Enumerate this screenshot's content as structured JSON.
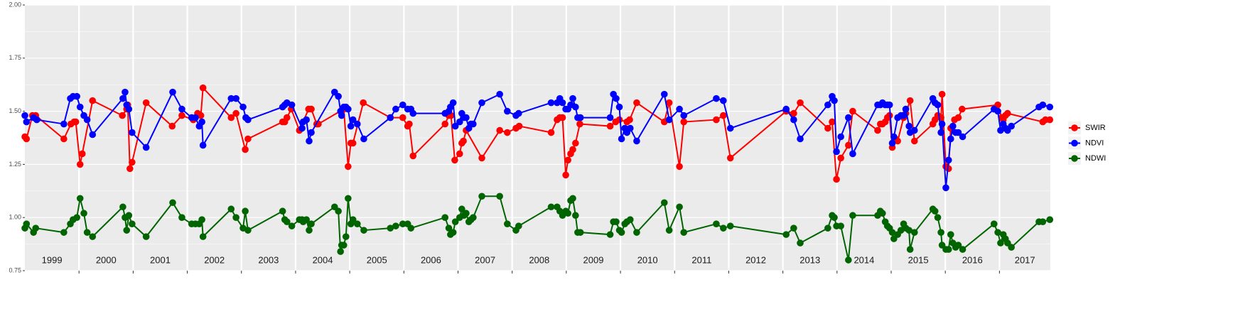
{
  "chart_data": {
    "type": "line",
    "legend": "right",
    "grid": true,
    "xlim": [
      1999,
      2017.94
    ],
    "ylim": [
      0.75,
      2
    ],
    "yticks": [
      {
        "value": 0.75,
        "label": "0.75"
      },
      {
        "value": 1,
        "label": "1.00"
      },
      {
        "value": 1.25,
        "label": "1.25"
      },
      {
        "value": 1.5,
        "label": "1.50"
      },
      {
        "value": 1.75,
        "label": "1.75"
      },
      {
        "value": 2,
        "label": "2.00"
      }
    ],
    "xticks": [
      1999,
      2000,
      2001,
      2002,
      2003,
      2004,
      2005,
      2006,
      2007,
      2008,
      2009,
      2010,
      2011,
      2012,
      2013,
      2014,
      2015,
      2016,
      2017
    ],
    "series": [
      {
        "name": "SWIR",
        "color": "#ff0000",
        "x": [
          1999.0,
          1999.03,
          1999.14,
          1999.2,
          1999.72,
          1999.85,
          1999.91,
          1999.94,
          2000.02,
          2000.06,
          2000.25,
          2000.8,
          2000.88,
          2000.9,
          2000.94,
          2000.98,
          2001.24,
          2001.72,
          2001.9,
          2002.11,
          2002.19,
          2002.25,
          2002.29,
          2002.81,
          2002.9,
          2003.07,
          2003.12,
          2003.76,
          2003.8,
          2003.84,
          2003.92,
          2004.07,
          2004.24,
          2004.29,
          2004.39,
          2004.42,
          2004.89,
          2004.97,
          2005.02,
          2005.06,
          2005.25,
          2005.75,
          2005.98,
          2006.07,
          2006.1,
          2006.17,
          2006.76,
          2006.83,
          2006.87,
          2006.94,
          2007.03,
          2007.07,
          2007.1,
          2007.15,
          2007.44,
          2007.77,
          2007.91,
          2008.07,
          2008.13,
          2008.72,
          2008.83,
          2008.88,
          2008.93,
          2008.99,
          2009.03,
          2009.08,
          2009.12,
          2009.17,
          2009.25,
          2009.81,
          2009.91,
          2009.98,
          2010.12,
          2010.17,
          2010.3,
          2010.81,
          2010.9,
          2011.09,
          2011.17,
          2011.77,
          2011.9,
          2012.03,
          2013.06,
          2013.2,
          2013.32,
          2013.83,
          2013.91,
          2013.99,
          2014.07,
          2014.21,
          2014.29,
          2014.75,
          2014.8,
          2014.84,
          2014.89,
          2014.93,
          2014.97,
          2015.02,
          2015.08,
          2015.12,
          2015.23,
          2015.27,
          2015.35,
          2015.43,
          2015.77,
          2015.81,
          2015.86,
          2015.92,
          2015.94,
          2016.01,
          2016.06,
          2016.1,
          2016.17,
          2016.24,
          2016.31,
          2016.97,
          2017.04,
          2017.07,
          2017.11,
          2017.15,
          2017.8,
          2017.85,
          2017.93
        ],
        "values": [
          1.38,
          1.37,
          1.48,
          1.48,
          1.37,
          1.44,
          1.45,
          1.45,
          1.25,
          1.3,
          1.55,
          1.48,
          1.51,
          1.53,
          1.23,
          1.26,
          1.54,
          1.43,
          1.48,
          1.46,
          1.49,
          1.48,
          1.61,
          1.47,
          1.49,
          1.32,
          1.37,
          1.45,
          1.45,
          1.47,
          1.51,
          1.41,
          1.51,
          1.51,
          1.44,
          1.44,
          1.51,
          1.24,
          1.35,
          1.35,
          1.54,
          1.47,
          1.47,
          1.43,
          1.44,
          1.29,
          1.44,
          1.48,
          1.48,
          1.27,
          1.3,
          1.35,
          1.36,
          1.41,
          1.28,
          1.41,
          1.4,
          1.42,
          1.43,
          1.4,
          1.46,
          1.47,
          1.47,
          1.2,
          1.27,
          1.3,
          1.32,
          1.35,
          1.44,
          1.43,
          1.45,
          1.46,
          1.45,
          1.46,
          1.54,
          1.45,
          1.54,
          1.24,
          1.45,
          1.46,
          1.48,
          1.28,
          1.5,
          1.49,
          1.54,
          1.42,
          1.45,
          1.18,
          1.28,
          1.34,
          1.5,
          1.41,
          1.44,
          1.44,
          1.45,
          1.47,
          1.48,
          1.33,
          1.37,
          1.36,
          1.47,
          1.49,
          1.55,
          1.36,
          1.44,
          1.46,
          1.48,
          1.47,
          1.58,
          1.24,
          1.23,
          1.42,
          1.46,
          1.47,
          1.51,
          1.53,
          1.47,
          1.46,
          1.48,
          1.49,
          1.45,
          1.46,
          1.46
        ]
      },
      {
        "name": "NDVI",
        "color": "#0000ff",
        "x": [
          1999.0,
          1999.03,
          1999.16,
          1999.22,
          1999.72,
          1999.84,
          1999.89,
          1999.96,
          2000.02,
          2000.09,
          2000.15,
          2000.25,
          2000.81,
          2000.85,
          2000.88,
          2000.92,
          2000.98,
          2001.24,
          2001.73,
          2001.9,
          2002.08,
          2002.15,
          2002.22,
          2002.27,
          2002.29,
          2002.81,
          2002.9,
          2003.03,
          2003.08,
          2003.12,
          2003.76,
          2003.8,
          2003.84,
          2003.93,
          2004.12,
          2004.14,
          2004.2,
          2004.25,
          2004.29,
          2004.72,
          2004.79,
          2004.83,
          2004.85,
          2004.89,
          2004.93,
          2004.97,
          2005.02,
          2005.06,
          2005.14,
          2005.26,
          2005.75,
          2005.85,
          2005.98,
          2006.07,
          2006.13,
          2006.17,
          2006.76,
          2006.83,
          2006.86,
          2006.91,
          2006.95,
          2007.03,
          2007.07,
          2007.11,
          2007.15,
          2007.2,
          2007.24,
          2007.28,
          2007.44,
          2007.77,
          2007.91,
          2008.07,
          2008.12,
          2008.72,
          2008.83,
          2008.88,
          2008.93,
          2008.99,
          2009.03,
          2009.08,
          2009.12,
          2009.17,
          2009.21,
          2009.26,
          2009.81,
          2009.87,
          2009.92,
          2009.98,
          2010.02,
          2010.08,
          2010.12,
          2010.18,
          2010.3,
          2010.81,
          2010.9,
          2011.09,
          2011.17,
          2011.77,
          2011.9,
          2012.03,
          2013.06,
          2013.2,
          2013.32,
          2013.83,
          2013.91,
          2013.95,
          2013.99,
          2014.07,
          2014.21,
          2014.29,
          2014.75,
          2014.8,
          2014.84,
          2014.89,
          2014.93,
          2014.97,
          2015.02,
          2015.05,
          2015.12,
          2015.18,
          2015.23,
          2015.27,
          2015.33,
          2015.35,
          2015.43,
          2015.77,
          2015.81,
          2015.86,
          2015.92,
          2015.94,
          2016.01,
          2016.06,
          2016.1,
          2016.14,
          2016.19,
          2016.24,
          2016.32,
          2016.9,
          2016.97,
          2017.02,
          2017.07,
          2017.11,
          2017.15,
          2017.22,
          2017.73,
          2017.8,
          2017.93
        ],
        "values": [
          1.48,
          1.45,
          1.47,
          1.46,
          1.44,
          1.56,
          1.57,
          1.57,
          1.52,
          1.48,
          1.46,
          1.39,
          1.56,
          1.59,
          1.53,
          1.51,
          1.4,
          1.33,
          1.59,
          1.51,
          1.47,
          1.47,
          1.43,
          1.45,
          1.34,
          1.56,
          1.56,
          1.52,
          1.47,
          1.46,
          1.52,
          1.53,
          1.54,
          1.53,
          1.42,
          1.45,
          1.46,
          1.36,
          1.4,
          1.59,
          1.57,
          1.5,
          1.48,
          1.52,
          1.52,
          1.51,
          1.43,
          1.46,
          1.44,
          1.37,
          1.47,
          1.51,
          1.53,
          1.51,
          1.51,
          1.49,
          1.49,
          1.5,
          1.52,
          1.54,
          1.43,
          1.45,
          1.49,
          1.47,
          1.47,
          1.42,
          1.44,
          1.44,
          1.54,
          1.58,
          1.5,
          1.48,
          1.49,
          1.54,
          1.54,
          1.56,
          1.54,
          1.51,
          1.51,
          1.53,
          1.56,
          1.52,
          1.47,
          1.47,
          1.47,
          1.58,
          1.56,
          1.52,
          1.37,
          1.42,
          1.4,
          1.42,
          1.36,
          1.58,
          1.46,
          1.51,
          1.48,
          1.56,
          1.55,
          1.42,
          1.51,
          1.46,
          1.37,
          1.53,
          1.57,
          1.55,
          1.31,
          1.38,
          1.47,
          1.3,
          1.53,
          1.53,
          1.54,
          1.53,
          1.53,
          1.53,
          1.35,
          1.38,
          1.47,
          1.48,
          1.48,
          1.51,
          1.43,
          1.4,
          1.41,
          1.56,
          1.54,
          1.53,
          1.4,
          1.44,
          1.14,
          1.27,
          1.37,
          1.43,
          1.4,
          1.4,
          1.38,
          1.51,
          1.5,
          1.41,
          1.44,
          1.42,
          1.41,
          1.43,
          1.52,
          1.53,
          1.52
        ]
      },
      {
        "name": "NDWI",
        "color": "#006400",
        "x": [
          1999.0,
          1999.03,
          1999.16,
          1999.2,
          1999.72,
          1999.84,
          1999.89,
          1999.96,
          2000.02,
          2000.09,
          2000.15,
          2000.25,
          2000.81,
          2000.85,
          2000.88,
          2000.92,
          2000.98,
          2001.24,
          2001.73,
          2001.9,
          2002.08,
          2002.15,
          2002.22,
          2002.27,
          2002.29,
          2002.81,
          2002.9,
          2003.03,
          2003.07,
          2003.12,
          2003.76,
          2003.8,
          2003.84,
          2003.93,
          2004.07,
          2004.12,
          2004.14,
          2004.2,
          2004.25,
          2004.29,
          2004.72,
          2004.79,
          2004.83,
          2004.85,
          2004.89,
          2004.93,
          2004.97,
          2005.02,
          2005.06,
          2005.14,
          2005.26,
          2005.75,
          2005.85,
          2005.98,
          2006.07,
          2006.13,
          2006.76,
          2006.83,
          2006.86,
          2006.91,
          2006.95,
          2007.03,
          2007.07,
          2007.11,
          2007.15,
          2007.2,
          2007.24,
          2007.28,
          2007.44,
          2007.77,
          2007.91,
          2008.07,
          2008.12,
          2008.72,
          2008.83,
          2008.88,
          2008.93,
          2008.99,
          2009.03,
          2009.08,
          2009.12,
          2009.17,
          2009.21,
          2009.26,
          2009.81,
          2009.87,
          2009.92,
          2009.98,
          2010.02,
          2010.08,
          2010.12,
          2010.18,
          2010.3,
          2010.81,
          2010.9,
          2011.09,
          2011.17,
          2011.77,
          2011.9,
          2012.03,
          2013.06,
          2013.2,
          2013.32,
          2013.83,
          2013.91,
          2013.95,
          2013.99,
          2014.07,
          2014.21,
          2014.29,
          2014.75,
          2014.8,
          2014.84,
          2014.89,
          2014.93,
          2014.97,
          2015.02,
          2015.05,
          2015.12,
          2015.18,
          2015.23,
          2015.27,
          2015.33,
          2015.35,
          2015.43,
          2015.77,
          2015.81,
          2015.86,
          2015.92,
          2015.94,
          2016.01,
          2016.06,
          2016.1,
          2016.14,
          2016.19,
          2016.24,
          2016.32,
          2016.9,
          2016.97,
          2017.02,
          2017.07,
          2017.11,
          2017.15,
          2017.22,
          2017.73,
          2017.8,
          2017.93
        ],
        "values": [
          0.95,
          0.97,
          0.93,
          0.95,
          0.93,
          0.97,
          0.99,
          1.0,
          1.09,
          1.02,
          0.93,
          0.91,
          1.05,
          1.0,
          0.94,
          1.01,
          0.97,
          0.91,
          1.07,
          1.0,
          0.97,
          0.97,
          0.97,
          0.99,
          0.91,
          1.04,
          1.0,
          0.95,
          1.03,
          0.94,
          1.03,
          0.99,
          0.98,
          0.96,
          0.99,
          0.99,
          0.98,
          0.99,
          0.94,
          0.97,
          1.05,
          1.03,
          0.84,
          0.87,
          0.87,
          0.91,
          1.09,
          0.97,
          0.99,
          0.97,
          0.94,
          0.95,
          0.96,
          0.97,
          0.97,
          0.95,
          1.0,
          0.95,
          0.92,
          0.93,
          0.98,
          1.0,
          1.04,
          1.01,
          1.02,
          0.98,
          0.99,
          1.0,
          1.1,
          1.1,
          0.97,
          0.94,
          0.96,
          1.05,
          1.05,
          1.03,
          1.01,
          1.03,
          1.02,
          1.08,
          1.09,
          1.01,
          0.93,
          0.93,
          0.92,
          0.98,
          0.98,
          0.94,
          0.93,
          0.97,
          0.98,
          0.99,
          0.93,
          1.07,
          0.94,
          1.05,
          0.93,
          0.97,
          0.95,
          0.96,
          0.92,
          0.95,
          0.88,
          0.95,
          1.01,
          1.0,
          0.96,
          0.96,
          0.8,
          1.01,
          1.01,
          1.03,
          1.02,
          0.98,
          0.96,
          0.95,
          0.93,
          0.9,
          0.92,
          0.94,
          0.97,
          0.95,
          0.94,
          0.85,
          0.93,
          1.04,
          1.03,
          1.0,
          0.93,
          0.87,
          0.85,
          0.85,
          0.92,
          0.88,
          0.86,
          0.87,
          0.85,
          0.97,
          0.93,
          0.88,
          0.92,
          0.9,
          0.88,
          0.86,
          0.98,
          0.98,
          0.99
        ]
      }
    ]
  }
}
